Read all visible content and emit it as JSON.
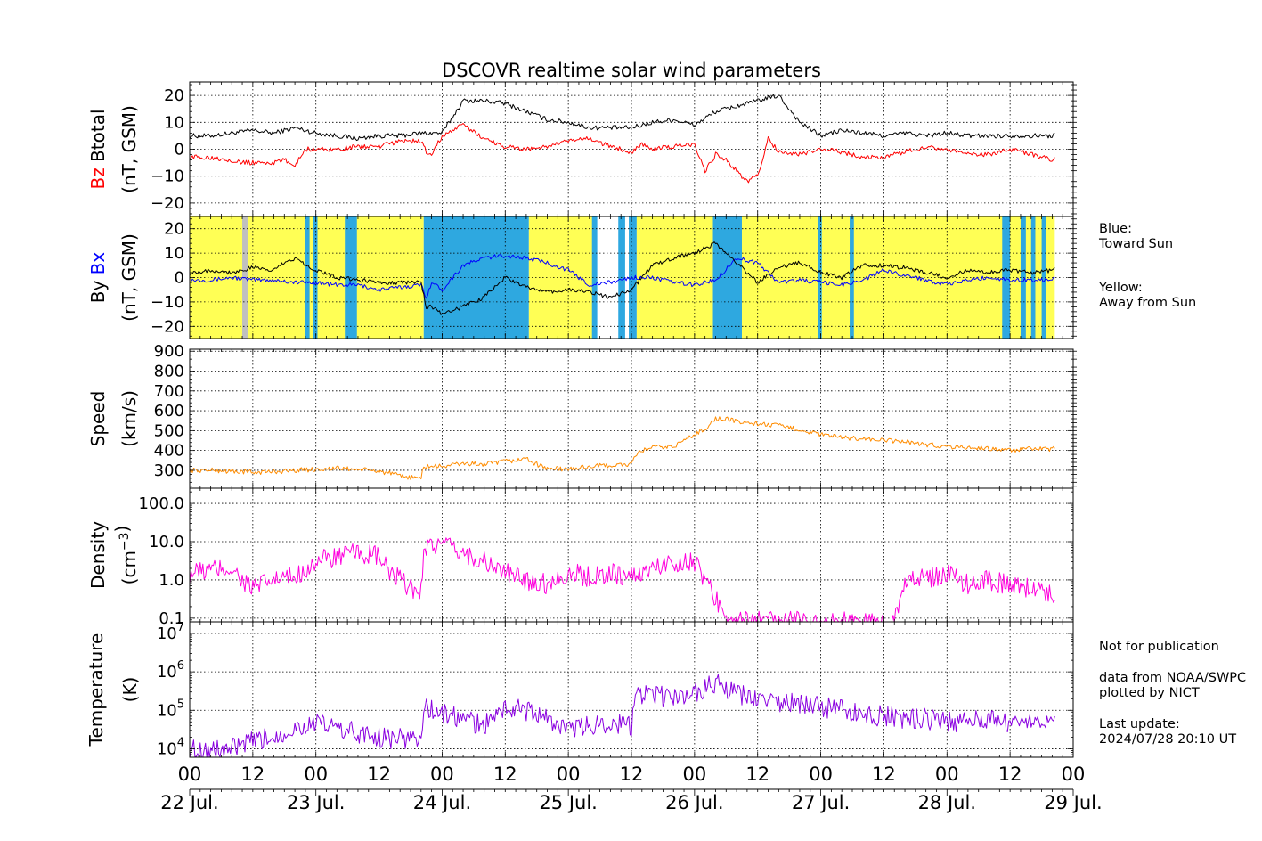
{
  "figure": {
    "title": "DSCOVR realtime solar wind parameters",
    "notes": {
      "blue_label_1": "Blue:",
      "blue_label_2": "Toward Sun",
      "yellow_label_1": "Yellow:",
      "yellow_label_2": "Away from Sun",
      "not_for_publication": "Not for publication",
      "source_1": "data from NOAA/SWPC",
      "source_2": "plotted by NICT",
      "last_update_label": "Last update:",
      "last_update_value": "2024/07/28 20:10 UT"
    },
    "colors": {
      "btotal": "#000000",
      "bz": "#ff0000",
      "bx": "#0000ff",
      "by": "#000000",
      "speed": "#ff8c00",
      "density": "#ff00dd",
      "temperature": "#8a00e0",
      "toward_sun": "#2ea8e0",
      "away_from_sun": "#ffff55",
      "no_data": "#c0c0c0",
      "note_blue": "#2ea8e0"
    }
  },
  "chart_data": [
    {
      "type": "line",
      "ylabel_lines": [
        {
          "parts": [
            {
              "text": "Bz",
              "color": "#ff0000"
            },
            {
              "text": "  Btotal",
              "color": "#000000"
            }
          ]
        },
        {
          "parts": [
            {
              "text": "(nT, GSM)",
              "color": "#000000"
            }
          ]
        }
      ],
      "ylim": [
        -25,
        25
      ],
      "yticks": [
        -20,
        -10,
        0,
        10,
        20
      ],
      "ytick_labels": [
        "−20",
        "−10",
        "0",
        "10",
        "20"
      ],
      "grid": true,
      "x_unit": "hours since 22 Jul. 00 UT",
      "series": [
        {
          "key": "btotal",
          "color": "#000000",
          "x": [
            0,
            4,
            8,
            12,
            16,
            20,
            24,
            28,
            32,
            36,
            40,
            44,
            48,
            52,
            56,
            60,
            64,
            68,
            72,
            76,
            80,
            84,
            88,
            92,
            96,
            100,
            104,
            108,
            112,
            116,
            120,
            124,
            128,
            132,
            136,
            140,
            144,
            148,
            152,
            156,
            160,
            164,
            164.5
          ],
          "y": [
            5,
            5,
            6,
            7,
            6,
            8,
            6,
            5,
            4,
            5,
            5,
            6,
            6,
            18,
            18,
            17,
            14,
            11,
            10,
            8,
            8,
            8,
            10,
            11,
            9,
            14,
            16,
            18,
            20,
            10,
            5,
            7,
            6,
            5,
            6,
            5,
            6,
            5,
            5,
            5,
            5,
            5,
            6
          ]
        },
        {
          "key": "bz",
          "color": "#ff0000",
          "x": [
            0,
            4,
            8,
            10,
            12,
            16,
            18,
            20,
            22,
            24,
            28,
            32,
            36,
            40,
            44,
            45,
            46,
            48,
            52,
            56,
            60,
            64,
            68,
            72,
            76,
            80,
            84,
            86,
            88,
            92,
            96,
            98,
            100,
            102,
            104,
            106,
            108,
            110,
            112,
            116,
            120,
            124,
            128,
            132,
            136,
            140,
            144,
            148,
            152,
            156,
            160,
            164,
            164.5
          ],
          "y": [
            -3,
            -3,
            -4,
            -5,
            -5,
            -5,
            -4,
            -6,
            0,
            0,
            0,
            1,
            1,
            3,
            3,
            -1,
            -2,
            5,
            9,
            4,
            1,
            0,
            1,
            3,
            4,
            1,
            -1,
            2,
            0,
            1,
            2,
            -8,
            -2,
            -4,
            -8,
            -12,
            -10,
            4,
            -1,
            -2,
            0,
            -1,
            -3,
            -3,
            -1,
            1,
            0,
            -2,
            -2,
            0,
            -2,
            -4,
            -3
          ]
        }
      ]
    },
    {
      "type": "line",
      "ylabel_lines": [
        {
          "parts": [
            {
              "text": "By",
              "color": "#000000"
            },
            {
              "text": "  Bx",
              "color": "#0000ff"
            }
          ]
        },
        {
          "parts": [
            {
              "text": "(nT, GSM)",
              "color": "#000000"
            }
          ]
        }
      ],
      "ylim": [
        -25,
        25
      ],
      "yticks": [
        -20,
        -10,
        0,
        10,
        20
      ],
      "ytick_labels": [
        "−20",
        "−10",
        "0",
        "10",
        "20"
      ],
      "grid": true,
      "sector_bands": [
        {
          "x0": 0,
          "x1": 44.5,
          "sector": "away"
        },
        {
          "x0": 10,
          "x1": 11,
          "sector": "nodata"
        },
        {
          "x0": 22,
          "x1": 22.8,
          "sector": "toward"
        },
        {
          "x0": 23.5,
          "x1": 24.3,
          "sector": "toward"
        },
        {
          "x0": 29.5,
          "x1": 31.8,
          "sector": "toward"
        },
        {
          "x0": 44.5,
          "x1": 64.5,
          "sector": "toward"
        },
        {
          "x0": 64.5,
          "x1": 77,
          "sector": "away"
        },
        {
          "x0": 76.5,
          "x1": 77.5,
          "sector": "toward"
        },
        {
          "x0": 81.5,
          "x1": 82.8,
          "sector": "toward"
        },
        {
          "x0": 83.5,
          "x1": 85,
          "sector": "toward"
        },
        {
          "x0": 85,
          "x1": 99.5,
          "sector": "away"
        },
        {
          "x0": 99.5,
          "x1": 105,
          "sector": "toward"
        },
        {
          "x0": 105,
          "x1": 164.5,
          "sector": "away"
        },
        {
          "x0": 119.5,
          "x1": 120.2,
          "sector": "toward"
        },
        {
          "x0": 125.5,
          "x1": 126.3,
          "sector": "toward"
        },
        {
          "x0": 154.5,
          "x1": 156,
          "sector": "toward"
        },
        {
          "x0": 158,
          "x1": 159,
          "sector": "toward"
        },
        {
          "x0": 160,
          "x1": 160.8,
          "sector": "toward"
        },
        {
          "x0": 162,
          "x1": 162.8,
          "sector": "toward"
        }
      ],
      "series": [
        {
          "key": "bx",
          "color": "#0000ff",
          "x": [
            0,
            4,
            8,
            12,
            16,
            20,
            24,
            28,
            32,
            36,
            40,
            44,
            45,
            46,
            48,
            52,
            56,
            60,
            64,
            68,
            72,
            76,
            80,
            84,
            88,
            92,
            96,
            100,
            104,
            108,
            112,
            116,
            120,
            124,
            128,
            132,
            136,
            140,
            144,
            148,
            152,
            156,
            160,
            164,
            164.5
          ],
          "y": [
            -1,
            -1,
            0,
            -1,
            -1,
            -2,
            -2,
            -3,
            -3,
            -5,
            -4,
            -3,
            -8,
            -2,
            -5,
            5,
            8,
            9,
            8,
            6,
            3,
            -3,
            -2,
            0,
            0,
            -2,
            -3,
            -1,
            8,
            6,
            -2,
            -1,
            -2,
            -3,
            -1,
            3,
            1,
            -1,
            -3,
            -1,
            0,
            -1,
            -1,
            -1,
            0
          ]
        },
        {
          "key": "by",
          "color": "#000000",
          "x": [
            0,
            4,
            8,
            12,
            16,
            18,
            20,
            24,
            28,
            32,
            36,
            40,
            44,
            45,
            46,
            48,
            52,
            56,
            60,
            64,
            68,
            72,
            76,
            80,
            84,
            88,
            92,
            96,
            100,
            104,
            108,
            112,
            116,
            120,
            124,
            128,
            132,
            136,
            140,
            144,
            148,
            152,
            156,
            160,
            164,
            164.5
          ],
          "y": [
            2,
            3,
            2,
            4,
            3,
            6,
            8,
            3,
            0,
            -1,
            -2,
            -2,
            -2,
            -12,
            -12,
            -15,
            -12,
            -8,
            0,
            -4,
            -6,
            -5,
            -6,
            -8,
            -5,
            5,
            8,
            10,
            14,
            6,
            -2,
            4,
            6,
            2,
            0,
            5,
            5,
            4,
            2,
            0,
            3,
            2,
            3,
            2,
            3,
            4
          ]
        }
      ]
    },
    {
      "type": "line",
      "ylabel_lines": [
        {
          "parts": [
            {
              "text": "Speed",
              "color": "#000000"
            }
          ]
        },
        {
          "parts": [
            {
              "text": "(km/s)",
              "color": "#000000"
            }
          ]
        }
      ],
      "ylim": [
        210,
        910
      ],
      "yticks": [
        300,
        400,
        500,
        600,
        700,
        800,
        900
      ],
      "ytick_labels": [
        "300",
        "400",
        "500",
        "600",
        "700",
        "800",
        "900"
      ],
      "grid": true,
      "series": [
        {
          "key": "speed",
          "color": "#ff8c00",
          "x": [
            0,
            4,
            8,
            12,
            16,
            20,
            24,
            28,
            32,
            36,
            38,
            40,
            42,
            44,
            44.5,
            46,
            48,
            52,
            56,
            60,
            62,
            64,
            66,
            68,
            72,
            76,
            80,
            84,
            85,
            86,
            88,
            92,
            96,
            98,
            100,
            102,
            104,
            108,
            112,
            116,
            120,
            124,
            128,
            132,
            136,
            140,
            144,
            148,
            152,
            156,
            160,
            164,
            164.5
          ],
          "y": [
            300,
            300,
            295,
            290,
            293,
            300,
            305,
            310,
            305,
            295,
            285,
            270,
            265,
            260,
            320,
            320,
            320,
            335,
            330,
            345,
            350,
            360,
            330,
            310,
            305,
            320,
            325,
            330,
            380,
            400,
            415,
            420,
            480,
            510,
            560,
            560,
            545,
            535,
            525,
            505,
            480,
            465,
            460,
            450,
            445,
            430,
            420,
            415,
            410,
            400,
            408,
            405,
            410
          ]
        }
      ]
    },
    {
      "type": "line",
      "ylabel_lines": [
        {
          "parts": [
            {
              "text": "Density",
              "color": "#000000"
            }
          ]
        },
        {
          "parts": [
            {
              "text": "(cm",
              "color": "#000000"
            },
            {
              "text": "−3",
              "color": "#000000",
              "sup": true
            },
            {
              "text": ")",
              "color": "#000000"
            }
          ]
        }
      ],
      "log": true,
      "ylim": [
        0.08,
        250
      ],
      "yticks": [
        0.1,
        1.0,
        10.0,
        100.0
      ],
      "ytick_labels": [
        "0.1",
        "1.0",
        "10.0",
        "100.0"
      ],
      "grid": true,
      "series": [
        {
          "key": "density",
          "color": "#ff00dd",
          "x": [
            0,
            4,
            8,
            10,
            12,
            16,
            20,
            24,
            28,
            32,
            36,
            38,
            40,
            42,
            44,
            44.5,
            46,
            48,
            52,
            56,
            60,
            64,
            68,
            72,
            76,
            80,
            84,
            88,
            92,
            96,
            98,
            100,
            102,
            104,
            106,
            108,
            112,
            116,
            120,
            124,
            128,
            132,
            134,
            136,
            140,
            144,
            148,
            152,
            156,
            160,
            164,
            164.5
          ],
          "y": [
            1.5,
            1.8,
            2.0,
            1.0,
            0.6,
            1.0,
            1.2,
            3.0,
            4.0,
            5.0,
            4.0,
            1.5,
            1.0,
            0.6,
            0.5,
            8.0,
            8.0,
            8.0,
            5.0,
            3.0,
            1.5,
            1.0,
            0.8,
            1.5,
            1.2,
            1.5,
            1.2,
            2.0,
            3.0,
            3.0,
            1.0,
            0.3,
            0.15,
            0.08,
            0.08,
            0.08,
            0.08,
            0.08,
            0.08,
            0.08,
            0.08,
            0.08,
            0.08,
            1.2,
            1.0,
            1.5,
            0.8,
            1.0,
            0.7,
            0.6,
            0.5,
            0.3
          ]
        }
      ]
    },
    {
      "type": "line",
      "ylabel_lines": [
        {
          "parts": [
            {
              "text": "Temperature",
              "color": "#000000"
            }
          ]
        },
        {
          "parts": [
            {
              "text": "(K)",
              "color": "#000000"
            }
          ]
        }
      ],
      "log": true,
      "ylim": [
        6000,
        20000000
      ],
      "yticks": [
        10000,
        100000,
        1000000,
        10000000
      ],
      "ytick_labels": [
        {
          "base": "10",
          "exp": "4"
        },
        {
          "base": "10",
          "exp": "5"
        },
        {
          "base": "10",
          "exp": "6"
        },
        {
          "base": "10",
          "exp": "7"
        }
      ],
      "grid": true,
      "series": [
        {
          "key": "temperature",
          "color": "#8a00e0",
          "x": [
            0,
            4,
            8,
            12,
            16,
            20,
            24,
            28,
            32,
            36,
            40,
            44,
            44.5,
            46,
            48,
            52,
            56,
            60,
            64,
            68,
            72,
            76,
            80,
            84,
            85,
            88,
            92,
            96,
            100,
            104,
            108,
            112,
            116,
            120,
            124,
            128,
            132,
            136,
            140,
            144,
            148,
            152,
            156,
            160,
            164,
            164.5
          ],
          "y": [
            10000,
            9000,
            10000,
            15000,
            20000,
            35000,
            45000,
            35000,
            25000,
            20000,
            18000,
            20000,
            120000,
            100000,
            80000,
            60000,
            40000,
            120000,
            100000,
            60000,
            30000,
            40000,
            50000,
            40000,
            250000,
            250000,
            200000,
            300000,
            500000,
            250000,
            200000,
            150000,
            150000,
            120000,
            100000,
            80000,
            70000,
            60000,
            60000,
            50000,
            50000,
            60000,
            50000,
            60000,
            60000,
            70000
          ]
        }
      ]
    }
  ],
  "x_axis": {
    "range": [
      0,
      168
    ],
    "hour_ticks": [
      0,
      12,
      24,
      36,
      48,
      60,
      72,
      84,
      96,
      108,
      120,
      132,
      144,
      156,
      168
    ],
    "hour_labels": [
      "00",
      "12",
      "00",
      "12",
      "00",
      "12",
      "00",
      "12",
      "00",
      "12",
      "00",
      "12",
      "00",
      "12",
      "00"
    ],
    "date_ticks": [
      0,
      24,
      48,
      72,
      96,
      120,
      144,
      168
    ],
    "date_labels": [
      "22 Jul.",
      "23 Jul.",
      "24 Jul.",
      "25 Jul.",
      "26 Jul.",
      "27 Jul.",
      "28 Jul.",
      "29 Jul."
    ]
  }
}
